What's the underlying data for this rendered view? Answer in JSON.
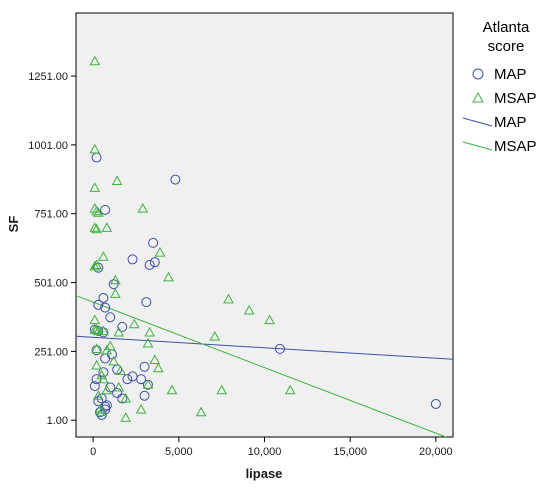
{
  "chart_data": {
    "type": "scatter",
    "xlabel": "lipase",
    "ylabel": "SF",
    "xlim": [
      -1000,
      21000
    ],
    "ylim": [
      -60,
      1480
    ],
    "x_ticks": [
      {
        "value": 0,
        "label": "0"
      },
      {
        "value": 5000,
        "label": "5,000"
      },
      {
        "value": 10000,
        "label": "10,000"
      },
      {
        "value": 15000,
        "label": "15,000"
      },
      {
        "value": 20000,
        "label": "20,000"
      }
    ],
    "y_ticks": [
      {
        "value": 1,
        "label": "1.00"
      },
      {
        "value": 251,
        "label": "251.00"
      },
      {
        "value": 501,
        "label": "501.00"
      },
      {
        "value": 751,
        "label": "751.00"
      },
      {
        "value": 1001,
        "label": "1001.00"
      },
      {
        "value": 1251,
        "label": "1251.00"
      }
    ],
    "grid": false,
    "legend_placement": "right",
    "legend": {
      "title_lines": [
        "Atlanta",
        "score"
      ],
      "entries": [
        {
          "label": "MAP",
          "kind": "marker",
          "shape": "circle",
          "color": "#3f4fa8"
        },
        {
          "label": "MSAP",
          "kind": "marker",
          "shape": "triangle",
          "color": "#3fb33f"
        },
        {
          "label": "MAP",
          "kind": "line",
          "color": "#3f4fa8"
        },
        {
          "label": "MSAP",
          "kind": "line",
          "color": "#3fb33f"
        }
      ]
    },
    "series": [
      {
        "name": "MAP",
        "marker": "circle",
        "color": "#3f4fa8",
        "points": [
          [
            200,
            955
          ],
          [
            4800,
            875
          ],
          [
            700,
            765
          ],
          [
            3500,
            645
          ],
          [
            3600,
            575
          ],
          [
            3300,
            565
          ],
          [
            2300,
            585
          ],
          [
            300,
            555
          ],
          [
            1200,
            495
          ],
          [
            600,
            445
          ],
          [
            3100,
            430
          ],
          [
            300,
            420
          ],
          [
            700,
            410
          ],
          [
            1000,
            375
          ],
          [
            100,
            330
          ],
          [
            300,
            325
          ],
          [
            1700,
            340
          ],
          [
            600,
            320
          ],
          [
            10900,
            260
          ],
          [
            200,
            255
          ],
          [
            1100,
            240
          ],
          [
            700,
            225
          ],
          [
            3000,
            195
          ],
          [
            1400,
            185
          ],
          [
            600,
            175
          ],
          [
            2300,
            160
          ],
          [
            2000,
            150
          ],
          [
            2800,
            150
          ],
          [
            200,
            150
          ],
          [
            100,
            125
          ],
          [
            3200,
            130
          ],
          [
            1000,
            120
          ],
          [
            1400,
            100
          ],
          [
            3000,
            90
          ],
          [
            1700,
            80
          ],
          [
            500,
            80
          ],
          [
            300,
            70
          ],
          [
            800,
            55
          ],
          [
            700,
            50
          ],
          [
            700,
            40
          ],
          [
            400,
            30
          ],
          [
            500,
            20
          ],
          [
            20000,
            60
          ]
        ]
      },
      {
        "name": "MSAP",
        "marker": "triangle",
        "color": "#3fb33f",
        "points": [
          [
            100,
            1305
          ],
          [
            100,
            985
          ],
          [
            100,
            845
          ],
          [
            1400,
            870
          ],
          [
            2900,
            770
          ],
          [
            100,
            770
          ],
          [
            200,
            760
          ],
          [
            300,
            755
          ],
          [
            800,
            700
          ],
          [
            100,
            700
          ],
          [
            200,
            695
          ],
          [
            600,
            595
          ],
          [
            200,
            565
          ],
          [
            100,
            560
          ],
          [
            3900,
            610
          ],
          [
            4400,
            520
          ],
          [
            1300,
            510
          ],
          [
            1300,
            460
          ],
          [
            7900,
            440
          ],
          [
            9100,
            400
          ],
          [
            10300,
            365
          ],
          [
            2400,
            350
          ],
          [
            100,
            365
          ],
          [
            100,
            330
          ],
          [
            200,
            330
          ],
          [
            300,
            325
          ],
          [
            600,
            325
          ],
          [
            1500,
            320
          ],
          [
            3300,
            320
          ],
          [
            7100,
            305
          ],
          [
            3200,
            280
          ],
          [
            1000,
            270
          ],
          [
            200,
            260
          ],
          [
            800,
            255
          ],
          [
            3600,
            220
          ],
          [
            1200,
            215
          ],
          [
            200,
            200
          ],
          [
            3800,
            190
          ],
          [
            1600,
            180
          ],
          [
            500,
            165
          ],
          [
            600,
            150
          ],
          [
            3200,
            130
          ],
          [
            1500,
            120
          ],
          [
            800,
            110
          ],
          [
            4600,
            110
          ],
          [
            7500,
            110
          ],
          [
            11500,
            110
          ],
          [
            300,
            90
          ],
          [
            1900,
            80
          ],
          [
            2800,
            40
          ],
          [
            400,
            40
          ],
          [
            500,
            30
          ],
          [
            1900,
            10
          ],
          [
            6300,
            30
          ]
        ]
      }
    ],
    "fit_lines": [
      {
        "name": "MAP",
        "color": "#3f4fa8",
        "intercept": 302,
        "slope": -0.0038
      },
      {
        "name": "MSAP",
        "color": "#3fb33f",
        "intercept": 430,
        "slope": -0.0238
      }
    ]
  }
}
